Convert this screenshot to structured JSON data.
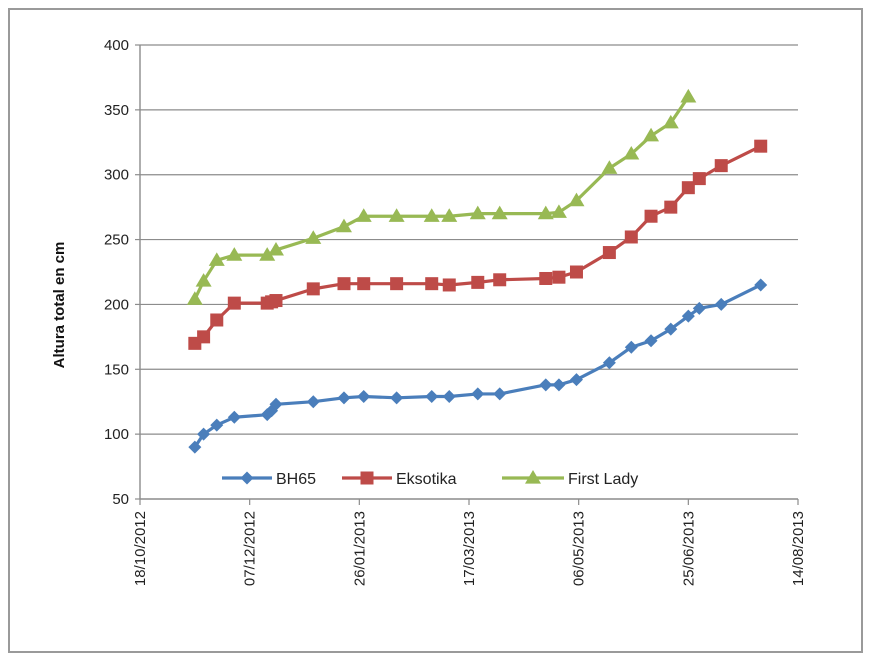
{
  "chart_data": {
    "type": "line",
    "title": "",
    "xlabel": "",
    "ylabel": "Altura total en cm",
    "ylim": [
      50,
      400
    ],
    "yticks": [
      50,
      100,
      150,
      200,
      250,
      300,
      350,
      400
    ],
    "xlim": [
      "2012-10-18",
      "2013-08-14"
    ],
    "xticks": [
      "2012-10-18",
      "2012-12-07",
      "2013-01-26",
      "2013-03-17",
      "2013-05-06",
      "2013-06-25",
      "2013-08-14"
    ],
    "xtick_labels": [
      "18/10/2012",
      "07/12/2012",
      "26/01/2013",
      "17/03/2013",
      "06/05/2013",
      "25/06/2013",
      "14/08/2013"
    ],
    "grid": "horizontal",
    "legend_position": "bottom-inside",
    "series": [
      {
        "name": "BH65",
        "color": "#4a7ebb",
        "marker": "diamond",
        "points": [
          [
            "2012-11-12",
            90
          ],
          [
            "2012-11-16",
            100
          ],
          [
            "2012-11-22",
            107
          ],
          [
            "2012-11-30",
            113
          ],
          [
            "2012-12-15",
            115
          ],
          [
            "2012-12-17",
            118
          ],
          [
            "2012-12-19",
            123
          ],
          [
            "2013-01-05",
            125
          ],
          [
            "2013-01-19",
            128
          ],
          [
            "2013-01-28",
            129
          ],
          [
            "2013-02-12",
            128
          ],
          [
            "2013-02-28",
            129
          ],
          [
            "2013-03-08",
            129
          ],
          [
            "2013-03-21",
            131
          ],
          [
            "2013-03-31",
            131
          ],
          [
            "2013-04-21",
            138
          ],
          [
            "2013-04-27",
            138
          ],
          [
            "2013-05-05",
            142
          ],
          [
            "2013-05-20",
            155
          ],
          [
            "2013-05-30",
            167
          ],
          [
            "2013-06-08",
            172
          ],
          [
            "2013-06-17",
            181
          ],
          [
            "2013-06-25",
            191
          ],
          [
            "2013-06-30",
            197
          ],
          [
            "2013-07-10",
            200
          ],
          [
            "2013-07-28",
            215
          ]
        ]
      },
      {
        "name": "Eksotika",
        "color": "#be4b48",
        "marker": "square",
        "points": [
          [
            "2012-11-12",
            170
          ],
          [
            "2012-11-16",
            175
          ],
          [
            "2012-11-22",
            188
          ],
          [
            "2012-11-30",
            201
          ],
          [
            "2012-12-15",
            201
          ],
          [
            "2012-12-17",
            202
          ],
          [
            "2012-12-19",
            203
          ],
          [
            "2013-01-05",
            212
          ],
          [
            "2013-01-19",
            216
          ],
          [
            "2013-01-28",
            216
          ],
          [
            "2013-02-12",
            216
          ],
          [
            "2013-02-28",
            216
          ],
          [
            "2013-03-08",
            215
          ],
          [
            "2013-03-21",
            217
          ],
          [
            "2013-03-31",
            219
          ],
          [
            "2013-04-21",
            220
          ],
          [
            "2013-04-27",
            221
          ],
          [
            "2013-05-05",
            225
          ],
          [
            "2013-05-20",
            240
          ],
          [
            "2013-05-30",
            252
          ],
          [
            "2013-06-08",
            268
          ],
          [
            "2013-06-17",
            275
          ],
          [
            "2013-06-25",
            290
          ],
          [
            "2013-06-30",
            297
          ],
          [
            "2013-07-10",
            307
          ],
          [
            "2013-07-28",
            322
          ]
        ]
      },
      {
        "name": "First Lady",
        "color": "#98b954",
        "marker": "triangle",
        "points": [
          [
            "2012-11-12",
            204
          ],
          [
            "2012-11-16",
            218
          ],
          [
            "2012-11-22",
            234
          ],
          [
            "2012-11-30",
            238
          ],
          [
            "2012-12-15",
            238
          ],
          [
            "2012-12-19",
            242
          ],
          [
            "2013-01-05",
            251
          ],
          [
            "2013-01-19",
            260
          ],
          [
            "2013-01-28",
            268
          ],
          [
            "2013-02-12",
            268
          ],
          [
            "2013-02-28",
            268
          ],
          [
            "2013-03-08",
            268
          ],
          [
            "2013-03-21",
            270
          ],
          [
            "2013-03-31",
            270
          ],
          [
            "2013-04-21",
            270
          ],
          [
            "2013-04-27",
            271
          ],
          [
            "2013-05-05",
            280
          ],
          [
            "2013-05-20",
            305
          ],
          [
            "2013-05-30",
            316
          ],
          [
            "2013-06-08",
            330
          ],
          [
            "2013-06-17",
            340
          ],
          [
            "2013-06-25",
            360
          ]
        ]
      }
    ]
  }
}
